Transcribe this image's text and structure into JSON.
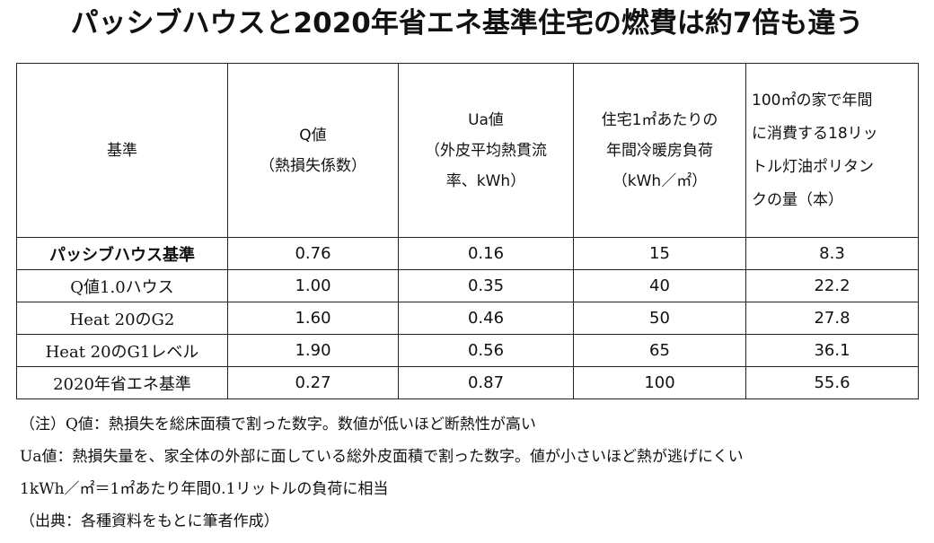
{
  "title": "パッシブハウスと2020年省エネ基準住宅の燃費は約7倍も違う",
  "table": {
    "headers": [
      {
        "lines": [
          "基準"
        ]
      },
      {
        "lines": [
          "Q値",
          "（熱損失係数）"
        ]
      },
      {
        "lines": [
          "Ua値",
          "（外皮平均熱貫流",
          "率、kWh）"
        ]
      },
      {
        "lines": [
          "住宅1㎡あたりの",
          "年間冷暖房負荷",
          "（kWh／㎡）"
        ]
      },
      {
        "lines": [
          "100㎡の家で年間",
          "に消費する18リッ",
          "トル灯油ポリタン",
          "クの量（本）"
        ]
      }
    ],
    "rows": [
      {
        "label": "パッシブハウス基準",
        "q": "0.76",
        "ua": "0.16",
        "load": "15",
        "tanks": "8.3"
      },
      {
        "label": "Q値1.0ハウス",
        "q": "1.00",
        "ua": "0.35",
        "load": "40",
        "tanks": "22.2"
      },
      {
        "label": "Heat 20のG2",
        "q": "1.60",
        "ua": "0.46",
        "load": "50",
        "tanks": "27.8"
      },
      {
        "label": "Heat 20のG1レベル",
        "q": "1.90",
        "ua": "0.56",
        "load": "65",
        "tanks": "36.1"
      },
      {
        "label": "2020年省エネ基準",
        "q": "0.27",
        "ua": "0.87",
        "load": "100",
        "tanks": "55.6"
      }
    ]
  },
  "notes": [
    "（注）Q値：熱損失を総床面積で割った数字。数値が低いほど断熱性が高い",
    "Ua値：熱損失量を、家全体の外部に面している総外皮面積で割った数字。値が小さいほど熱が逃げにくい",
    "1kWh／㎡＝1㎡あたり年間0.1リットルの負荷に相当",
    "（出典：各種資料をもとに筆者作成）"
  ]
}
